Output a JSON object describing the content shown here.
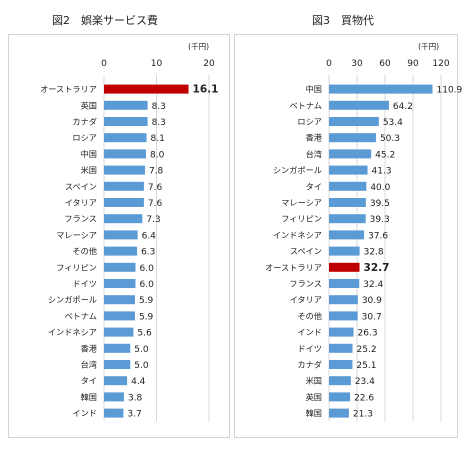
{
  "figures": [
    {
      "title": "図2　娯楽サービス費"
    },
    {
      "title": "図3　買物代"
    }
  ],
  "colors": {
    "bar": "#5b9bd5",
    "highlight": "#c00000",
    "grid": "#d9d9d9",
    "text": "#222222"
  },
  "chart_data": [
    {
      "type": "bar",
      "orientation": "horizontal",
      "title": "図2　娯楽サービス費",
      "unit": "(千円)",
      "xlim": [
        0,
        20
      ],
      "ticks": [
        0,
        10,
        20
      ],
      "grid": true,
      "highlight": "オーストラリア",
      "categories": [
        "オーストラリア",
        "英国",
        "カナダ",
        "ロシア",
        "中国",
        "米国",
        "スペイン",
        "イタリア",
        "フランス",
        "マレーシア",
        "その他",
        "フィリピン",
        "ドイツ",
        "シンガポール",
        "ベトナム",
        "インドネシア",
        "香港",
        "台湾",
        "タイ",
        "韓国",
        "インド"
      ],
      "values": [
        16.1,
        8.3,
        8.3,
        8.1,
        8.0,
        7.8,
        7.6,
        7.6,
        7.3,
        6.4,
        6.3,
        6.0,
        6.0,
        5.9,
        5.9,
        5.6,
        5.0,
        5.0,
        4.4,
        3.8,
        3.7
      ],
      "value_labels": [
        "16.1",
        "8.3",
        "8.3",
        "8.1",
        "8.0",
        "7.8",
        "7.6",
        "7.6",
        "7.3",
        "6.4",
        "6.3",
        "6.0",
        "6.0",
        "5.9",
        "5.9",
        "5.6",
        "5.0",
        "5.0",
        "4.4",
        "3.8",
        "3.7"
      ]
    },
    {
      "type": "bar",
      "orientation": "horizontal",
      "title": "図3　買物代",
      "unit": "(千円)",
      "xlim": [
        0,
        120
      ],
      "ticks": [
        0,
        30,
        60,
        90,
        120
      ],
      "grid": true,
      "highlight": "オーストラリア",
      "categories": [
        "中国",
        "ベトナム",
        "ロシア",
        "香港",
        "台湾",
        "シンガポール",
        "タイ",
        "マレーシア",
        "フィリピン",
        "インドネシア",
        "スペイン",
        "オーストラリア",
        "フランス",
        "イタリア",
        "その他",
        "インド",
        "ドイツ",
        "カナダ",
        "米国",
        "英国",
        "韓国"
      ],
      "values": [
        110.9,
        64.2,
        53.4,
        50.3,
        45.2,
        41.3,
        40.0,
        39.5,
        39.3,
        37.6,
        32.8,
        32.7,
        32.4,
        30.9,
        30.7,
        26.3,
        25.2,
        25.1,
        23.4,
        22.6,
        21.3
      ],
      "value_labels": [
        "110.9",
        "64.2",
        "53.4",
        "50.3",
        "45.2",
        "41.3",
        "40.0",
        "39.5",
        "39.3",
        "37.6",
        "32.8",
        "32.7",
        "32.4",
        "30.9",
        "30.7",
        "26.3",
        "25.2",
        "25.1",
        "23.4",
        "22.6",
        "21.3"
      ]
    }
  ]
}
